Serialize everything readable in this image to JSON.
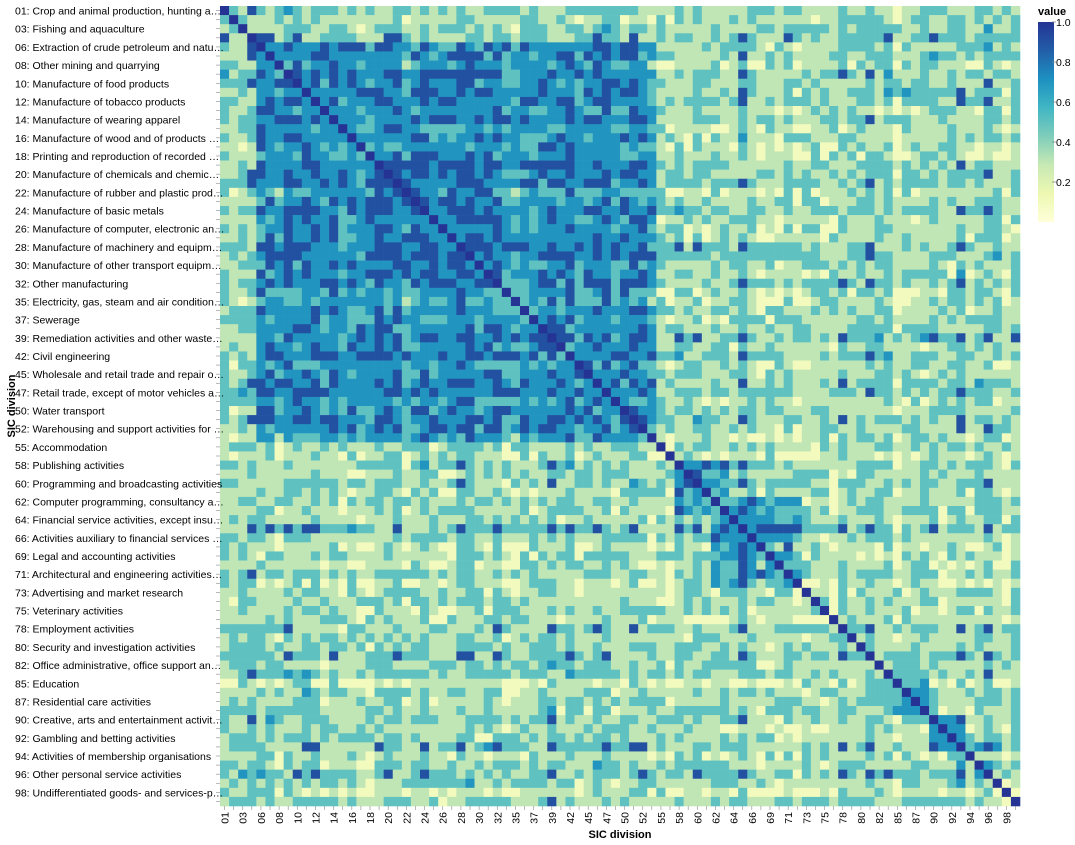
{
  "chart_data": {
    "type": "heatmap",
    "title": "",
    "xlabel": "SIC division",
    "ylabel": "SIC division",
    "legend_title": "value",
    "legend_ticks": [
      "1.0",
      "0.8",
      "0.6",
      "0.4",
      "0.2"
    ],
    "legend_tick_values": [
      1.0,
      0.8,
      0.6,
      0.4,
      0.2
    ],
    "value_range": [
      0,
      1
    ],
    "colormap": [
      "#ffffd9",
      "#edf8b1",
      "#c7e9b4",
      "#7fcdbb",
      "#41b6c4",
      "#1d91c0",
      "#225ea8",
      "#253494"
    ],
    "grid": false,
    "legend_position": "right",
    "y_tick_labels": [
      "01: Crop and animal production, hunting a…",
      "03: Fishing and aquaculture",
      "06: Extraction of crude petroleum and natu…",
      "08: Other mining and quarrying",
      "10: Manufacture of food products",
      "12: Manufacture of tobacco products",
      "14: Manufacture of wearing apparel",
      "16: Manufacture of wood and of products …",
      "18: Printing and reproduction of recorded …",
      "20: Manufacture of chemicals and chemic…",
      "22: Manufacture of rubber and plastic prod…",
      "24: Manufacture of basic metals",
      "26: Manufacture of computer, electronic an…",
      "28: Manufacture of machinery and equipm…",
      "30: Manufacture of other transport equipm…",
      "32: Other manufacturing",
      "35: Electricity, gas, steam and air condition…",
      "37: Sewerage",
      "39: Remediation activities and other waste…",
      "42: Civil engineering",
      "45: Wholesale and retail trade and repair o…",
      "47: Retail trade, except of motor vehicles a…",
      "50: Water transport",
      "52: Warehousing and support activities for …",
      "55: Accommodation",
      "58: Publishing activities",
      "60: Programming and broadcasting activities",
      "62: Computer programming, consultancy a…",
      "64: Financial service activities, except insu…",
      "66: Activities auxiliary to financial services …",
      "69: Legal and accounting activities",
      "71: Architectural and engineering activities…",
      "73: Advertising and market research",
      "75: Veterinary activities",
      "78: Employment activities",
      "80: Security and investigation activities",
      "82: Office administrative, office support an…",
      "85: Education",
      "87: Residential care activities",
      "90: Creative, arts and entertainment activit…",
      "92: Gambling and betting activities",
      "94: Activities of membership organisations",
      "96: Other personal service activities",
      "98: Undifferentiated goods- and services-p…"
    ],
    "x_tick_labels": [
      "01",
      "03",
      "06",
      "08",
      "10",
      "12",
      "14",
      "16",
      "18",
      "20",
      "22",
      "24",
      "26",
      "28",
      "30",
      "32",
      "35",
      "37",
      "39",
      "42",
      "45",
      "47",
      "50",
      "52",
      "55",
      "58",
      "60",
      "62",
      "64",
      "66",
      "69",
      "71",
      "73",
      "75",
      "78",
      "80",
      "82",
      "85",
      "87",
      "90",
      "92",
      "94",
      "96",
      "98"
    ],
    "cells_per_axis": 88,
    "diagonal_value": 1.0,
    "value_levels": [
      0.1,
      0.3,
      0.5,
      0.7,
      0.9
    ],
    "blocks": [
      {
        "from": "06",
        "to": "52",
        "value": 0.8
      },
      {
        "from": "18",
        "to": "30",
        "value": 0.95
      },
      {
        "from": "58",
        "to": "62",
        "value": 0.85
      },
      {
        "from": "62",
        "to": "71",
        "value": 0.8
      },
      {
        "from": "85",
        "to": "87",
        "value": 0.85
      },
      {
        "from": "90",
        "to": "92",
        "value": 0.95
      }
    ],
    "off_block_value": 0.3
  }
}
